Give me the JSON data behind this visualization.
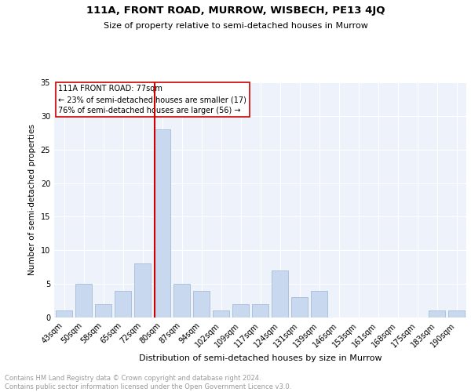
{
  "title": "111A, FRONT ROAD, MURROW, WISBECH, PE13 4JQ",
  "subtitle": "Size of property relative to semi-detached houses in Murrow",
  "xlabel": "Distribution of semi-detached houses by size in Murrow",
  "ylabel": "Number of semi-detached properties",
  "categories": [
    "43sqm",
    "50sqm",
    "58sqm",
    "65sqm",
    "72sqm",
    "80sqm",
    "87sqm",
    "94sqm",
    "102sqm",
    "109sqm",
    "117sqm",
    "124sqm",
    "131sqm",
    "139sqm",
    "146sqm",
    "153sqm",
    "161sqm",
    "168sqm",
    "175sqm",
    "183sqm",
    "190sqm"
  ],
  "values": [
    1,
    5,
    2,
    4,
    8,
    28,
    5,
    4,
    1,
    2,
    2,
    7,
    3,
    4,
    0,
    0,
    0,
    0,
    0,
    1,
    1
  ],
  "bar_color": "#c8d8ee",
  "bar_edge_color": "#9ab4d4",
  "vline_color": "#cc0000",
  "vline_index": 4.6,
  "annotation_title": "111A FRONT ROAD: 77sqm",
  "annotation_line1": "← 23% of semi-detached houses are smaller (17)",
  "annotation_line2": "76% of semi-detached houses are larger (56) →",
  "annotation_box_color": "#ffffff",
  "annotation_box_edge": "#cc0000",
  "background_color": "#eef2fa",
  "grid_color": "#ffffff",
  "footer_line1": "Contains HM Land Registry data © Crown copyright and database right 2024.",
  "footer_line2": "Contains public sector information licensed under the Open Government Licence v3.0.",
  "ylim": [
    0,
    35
  ],
  "yticks": [
    0,
    5,
    10,
    15,
    20,
    25,
    30,
    35
  ],
  "title_fontsize": 9.5,
  "subtitle_fontsize": 8,
  "ylabel_fontsize": 7.5,
  "xlabel_fontsize": 8,
  "tick_fontsize": 7,
  "annotation_fontsize": 7,
  "footer_fontsize": 6
}
